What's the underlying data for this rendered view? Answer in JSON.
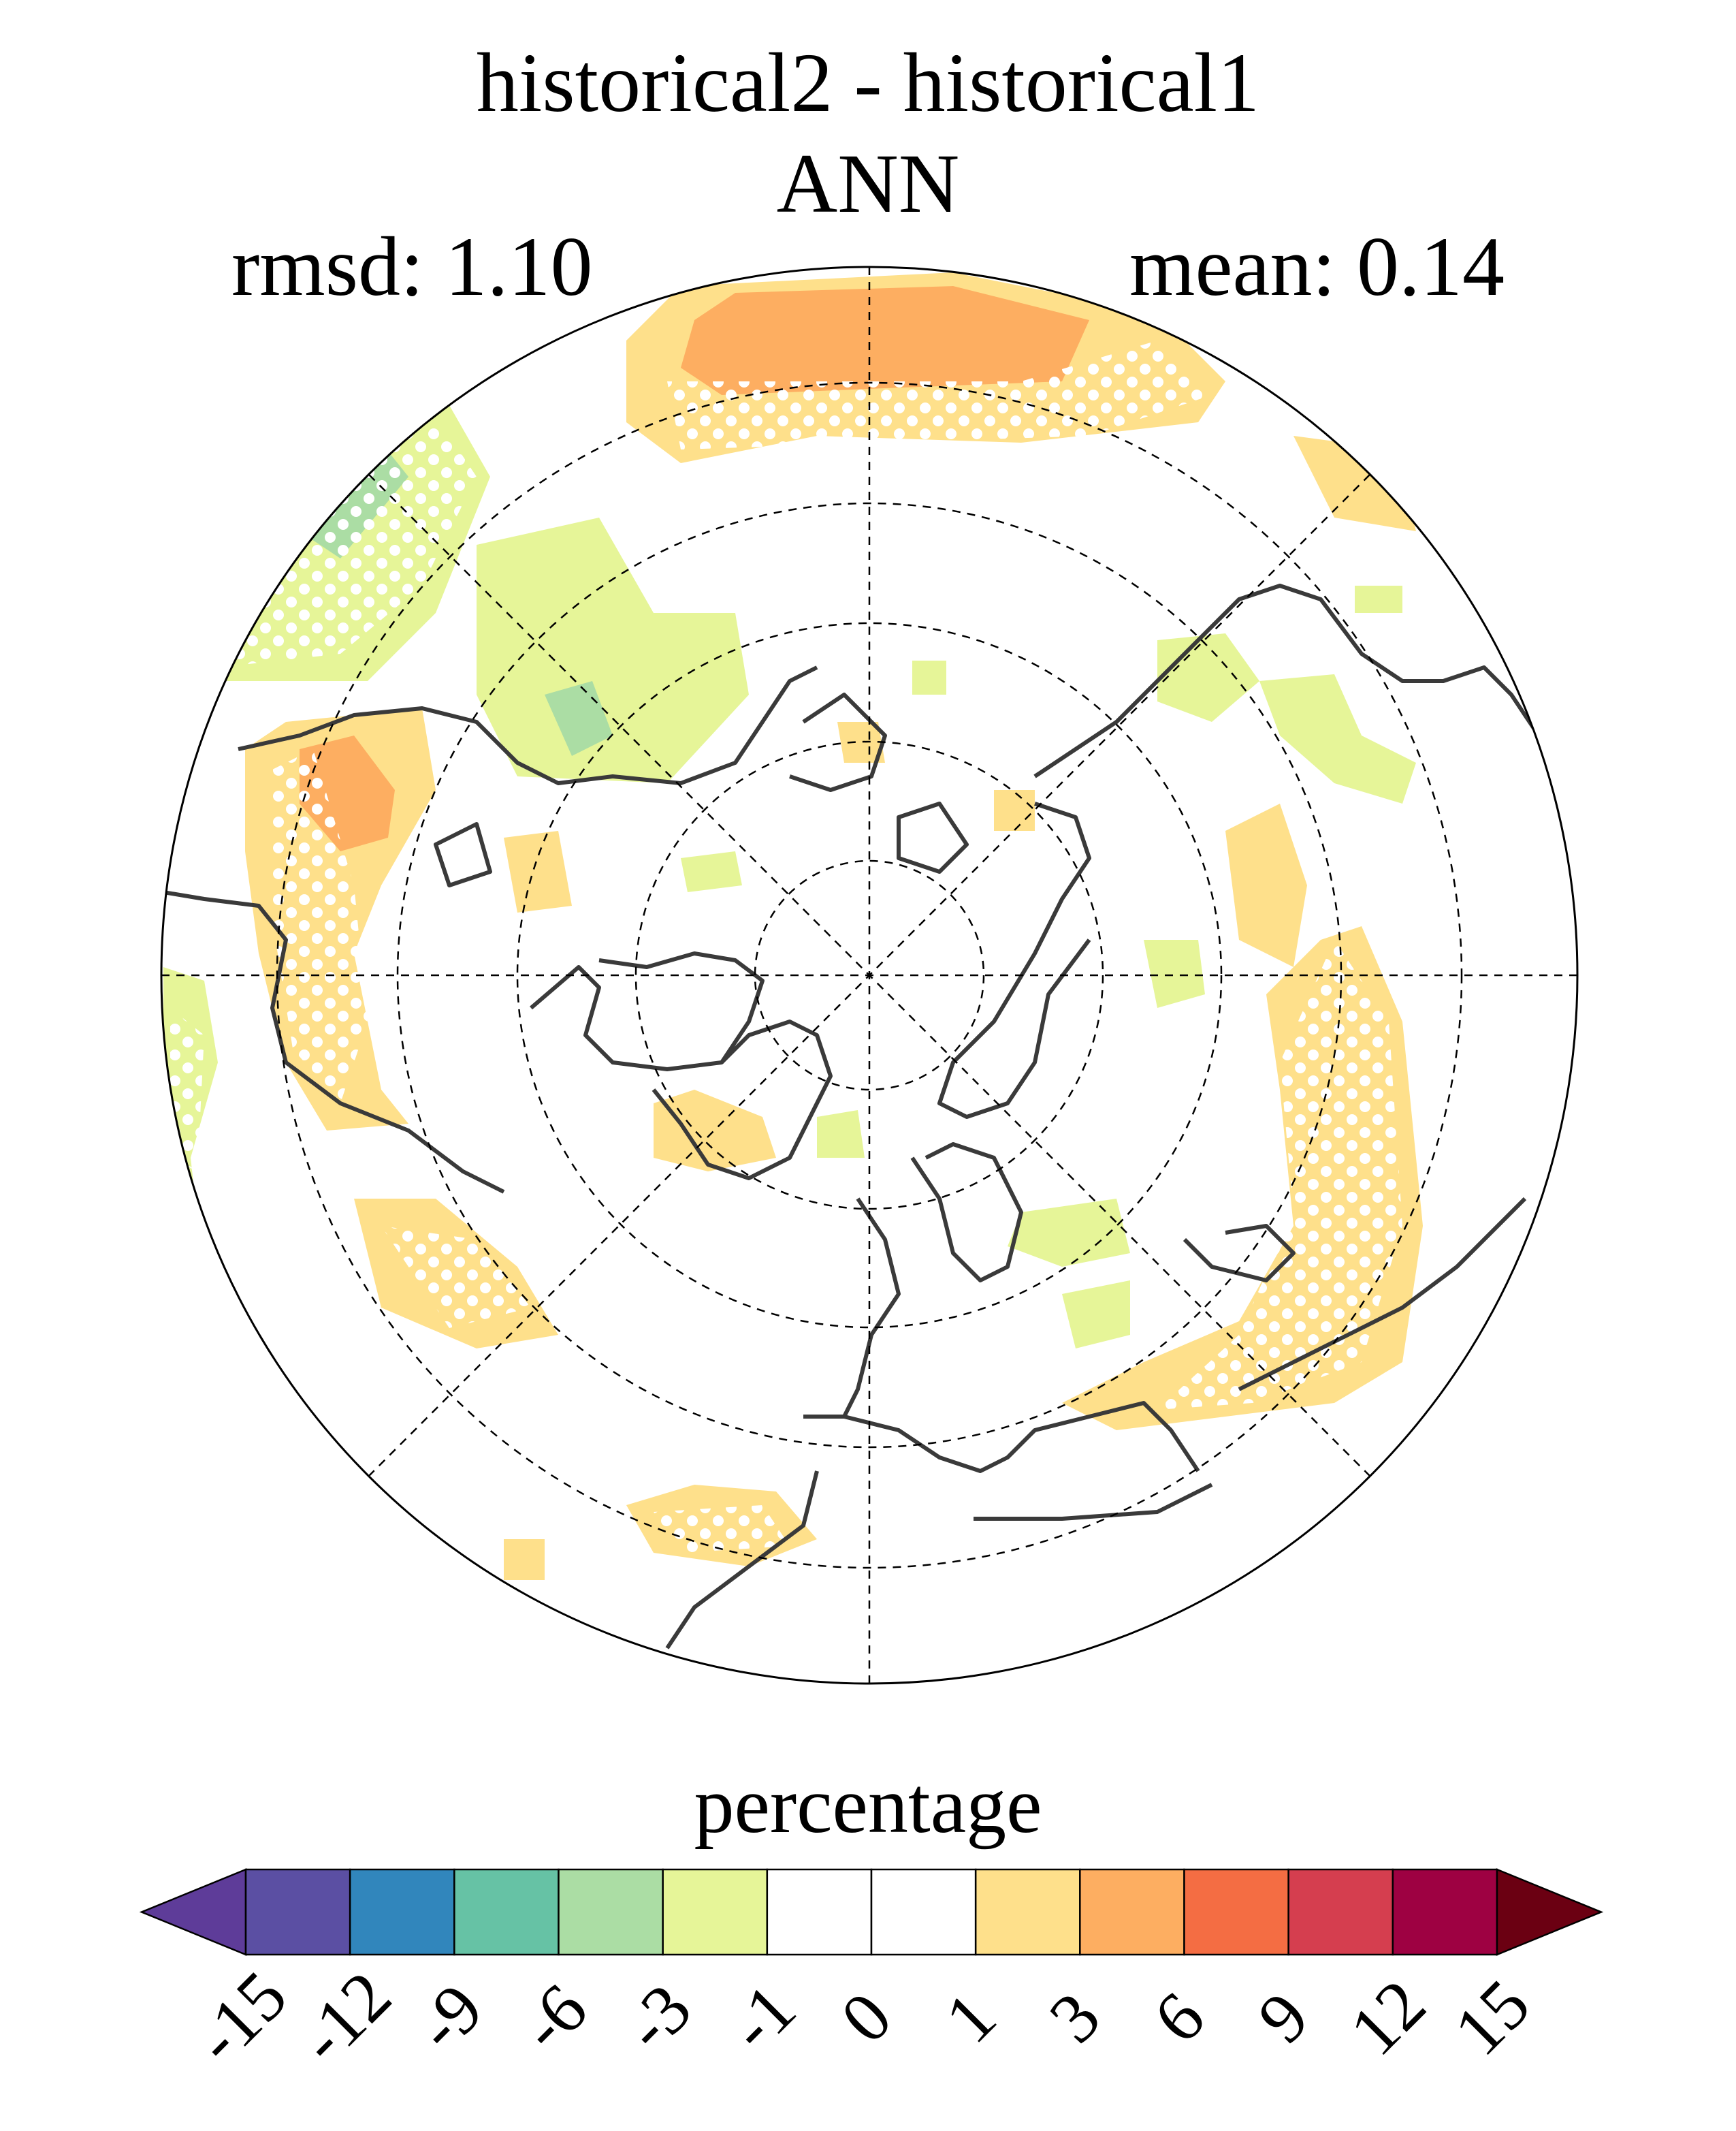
{
  "title": {
    "line1": "historical2 - historical1",
    "line2": "ANN",
    "rmsd_text": "rmsd: 1.10",
    "mean_text": "mean: 0.14"
  },
  "colorbar": {
    "label": "percentage",
    "ticks": [
      "-15",
      "-12",
      "-9",
      "-6",
      "-3",
      "-1",
      "0",
      "1",
      "3",
      "6",
      "9",
      "12",
      "15"
    ],
    "colors": [
      "#5e3c99",
      "#5b4fa3",
      "#3186bc",
      "#66c2a5",
      "#abdda4",
      "#e6f598",
      "#ffffff",
      "#ffffff",
      "#fee08b",
      "#fdae61",
      "#f46d43",
      "#d53e4f",
      "#9e0142",
      "#6b0012"
    ]
  },
  "map": {
    "projection": "north-polar-stereographic",
    "stippling": "white dots mark significant regions"
  }
}
